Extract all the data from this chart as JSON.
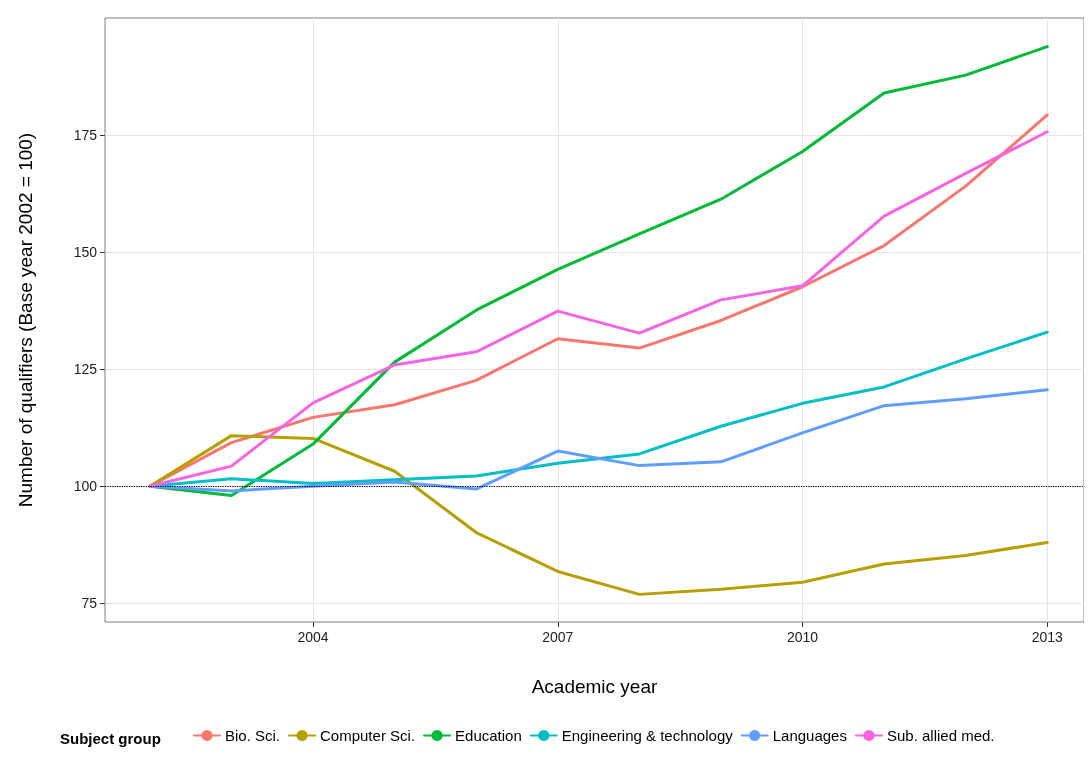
{
  "chart_data": {
    "type": "line",
    "xlabel": "Academic year",
    "ylabel": "Number of qualifiers (Base year 2002 = 100)",
    "legend_title": "Subject group",
    "legend": "bottom",
    "grid": true,
    "line_style": "solid",
    "marker": "none",
    "x": [
      2002,
      2003,
      2004,
      2005,
      2006,
      2007,
      2008,
      2009,
      2010,
      2011,
      2012,
      2013
    ],
    "xlim": [
      2001.45,
      2013.45
    ],
    "xticks": [
      2004,
      2007,
      2010,
      2013
    ],
    "ylim": [
      71,
      200
    ],
    "yticks": [
      75,
      100,
      125,
      150,
      175
    ],
    "ref_lines": [
      {
        "axis": "y",
        "value": 100,
        "color": "#000000",
        "line_style": "dotted"
      }
    ],
    "series": [
      {
        "name": "Bio. Sci.",
        "color": "#f8766d",
        "values": [
          100,
          109.3,
          114.7,
          117.4,
          122.6,
          131.5,
          129.5,
          135.4,
          142.6,
          151.4,
          164.1,
          179.3
        ]
      },
      {
        "name": "Computer Sci.",
        "color": "#b79f00",
        "values": [
          100,
          110.8,
          110.2,
          103.2,
          90.1,
          81.8,
          76.9,
          78.0,
          79.5,
          83.4,
          85.2,
          88.0
        ]
      },
      {
        "name": "Education",
        "color": "#00ba38",
        "values": [
          100,
          98.0,
          109.0,
          126.5,
          137.6,
          146.3,
          153.9,
          161.3,
          171.5,
          184.0,
          187.8,
          193.9
        ]
      },
      {
        "name": "Engineering & technology",
        "color": "#00bfc4",
        "values": [
          100,
          101.6,
          100.6,
          101.4,
          102.2,
          104.9,
          106.9,
          112.8,
          117.7,
          121.2,
          127.2,
          132.9
        ]
      },
      {
        "name": "Languages",
        "color": "#619cff",
        "values": [
          100,
          99.0,
          100,
          100.9,
          99.4,
          107.5,
          104.4,
          105.2,
          111.4,
          117.2,
          118.7,
          120.6
        ]
      },
      {
        "name": "Sub. allied med.",
        "color": "#f564e3",
        "values": [
          100,
          104.3,
          117.8,
          125.9,
          128.7,
          137.4,
          132.7,
          139.8,
          142.8,
          157.7,
          166.8,
          175.7
        ]
      }
    ]
  }
}
